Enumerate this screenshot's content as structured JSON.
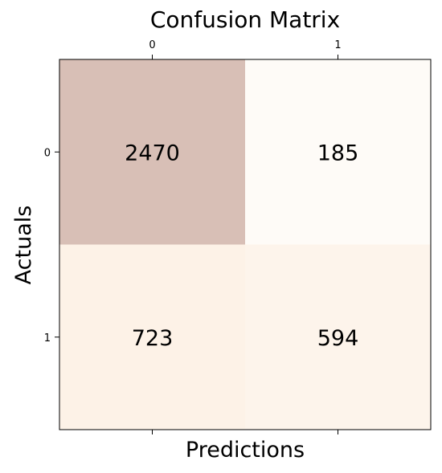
{
  "chart_data": {
    "type": "heatmap",
    "title": "Confusion Matrix",
    "xlabel": "Predictions",
    "ylabel": "Actuals",
    "x_categories": [
      "0",
      "1"
    ],
    "y_categories": [
      "0",
      "1"
    ],
    "values": [
      [
        2470,
        185
      ],
      [
        723,
        594
      ]
    ],
    "x_ticks_position": "both",
    "grid": false,
    "colormap": "Oranges-muted",
    "cell_alpha": 0.3,
    "colors": {
      "low": "#fefbf7",
      "mid": "#fdf1e6",
      "high": "#d8bfb6"
    }
  }
}
